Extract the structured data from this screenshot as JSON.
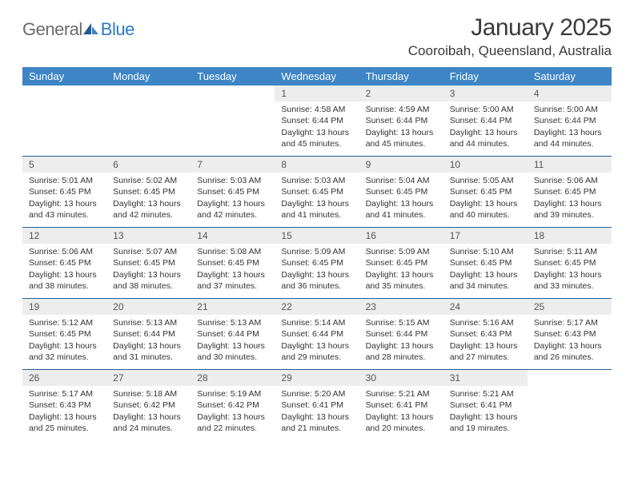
{
  "logo": {
    "general": "General",
    "blue": "Blue"
  },
  "title": {
    "month": "January 2025",
    "location": "Cooroibah, Queensland, Australia"
  },
  "colors": {
    "header_bg": "#3d85c6",
    "header_text": "#ffffff",
    "daynum_bg": "#ededed",
    "week_border": "#2a5b8f",
    "logo_gray": "#6b6b6b",
    "logo_blue": "#2a78c2",
    "body_text": "#333333"
  },
  "weekdays": [
    "Sunday",
    "Monday",
    "Tuesday",
    "Wednesday",
    "Thursday",
    "Friday",
    "Saturday"
  ],
  "labels": {
    "sunrise": "Sunrise:",
    "sunset": "Sunset:",
    "daylight": "Daylight:"
  },
  "weeks": [
    [
      {
        "num": "",
        "sunrise": "",
        "sunset": "",
        "daylight": ""
      },
      {
        "num": "",
        "sunrise": "",
        "sunset": "",
        "daylight": ""
      },
      {
        "num": "",
        "sunrise": "",
        "sunset": "",
        "daylight": ""
      },
      {
        "num": "1",
        "sunrise": "4:58 AM",
        "sunset": "6:44 PM",
        "daylight": "13 hours and 45 minutes."
      },
      {
        "num": "2",
        "sunrise": "4:59 AM",
        "sunset": "6:44 PM",
        "daylight": "13 hours and 45 minutes."
      },
      {
        "num": "3",
        "sunrise": "5:00 AM",
        "sunset": "6:44 PM",
        "daylight": "13 hours and 44 minutes."
      },
      {
        "num": "4",
        "sunrise": "5:00 AM",
        "sunset": "6:44 PM",
        "daylight": "13 hours and 44 minutes."
      }
    ],
    [
      {
        "num": "5",
        "sunrise": "5:01 AM",
        "sunset": "6:45 PM",
        "daylight": "13 hours and 43 minutes."
      },
      {
        "num": "6",
        "sunrise": "5:02 AM",
        "sunset": "6:45 PM",
        "daylight": "13 hours and 42 minutes."
      },
      {
        "num": "7",
        "sunrise": "5:03 AM",
        "sunset": "6:45 PM",
        "daylight": "13 hours and 42 minutes."
      },
      {
        "num": "8",
        "sunrise": "5:03 AM",
        "sunset": "6:45 PM",
        "daylight": "13 hours and 41 minutes."
      },
      {
        "num": "9",
        "sunrise": "5:04 AM",
        "sunset": "6:45 PM",
        "daylight": "13 hours and 41 minutes."
      },
      {
        "num": "10",
        "sunrise": "5:05 AM",
        "sunset": "6:45 PM",
        "daylight": "13 hours and 40 minutes."
      },
      {
        "num": "11",
        "sunrise": "5:06 AM",
        "sunset": "6:45 PM",
        "daylight": "13 hours and 39 minutes."
      }
    ],
    [
      {
        "num": "12",
        "sunrise": "5:06 AM",
        "sunset": "6:45 PM",
        "daylight": "13 hours and 38 minutes."
      },
      {
        "num": "13",
        "sunrise": "5:07 AM",
        "sunset": "6:45 PM",
        "daylight": "13 hours and 38 minutes."
      },
      {
        "num": "14",
        "sunrise": "5:08 AM",
        "sunset": "6:45 PM",
        "daylight": "13 hours and 37 minutes."
      },
      {
        "num": "15",
        "sunrise": "5:09 AM",
        "sunset": "6:45 PM",
        "daylight": "13 hours and 36 minutes."
      },
      {
        "num": "16",
        "sunrise": "5:09 AM",
        "sunset": "6:45 PM",
        "daylight": "13 hours and 35 minutes."
      },
      {
        "num": "17",
        "sunrise": "5:10 AM",
        "sunset": "6:45 PM",
        "daylight": "13 hours and 34 minutes."
      },
      {
        "num": "18",
        "sunrise": "5:11 AM",
        "sunset": "6:45 PM",
        "daylight": "13 hours and 33 minutes."
      }
    ],
    [
      {
        "num": "19",
        "sunrise": "5:12 AM",
        "sunset": "6:45 PM",
        "daylight": "13 hours and 32 minutes."
      },
      {
        "num": "20",
        "sunrise": "5:13 AM",
        "sunset": "6:44 PM",
        "daylight": "13 hours and 31 minutes."
      },
      {
        "num": "21",
        "sunrise": "5:13 AM",
        "sunset": "6:44 PM",
        "daylight": "13 hours and 30 minutes."
      },
      {
        "num": "22",
        "sunrise": "5:14 AM",
        "sunset": "6:44 PM",
        "daylight": "13 hours and 29 minutes."
      },
      {
        "num": "23",
        "sunrise": "5:15 AM",
        "sunset": "6:44 PM",
        "daylight": "13 hours and 28 minutes."
      },
      {
        "num": "24",
        "sunrise": "5:16 AM",
        "sunset": "6:43 PM",
        "daylight": "13 hours and 27 minutes."
      },
      {
        "num": "25",
        "sunrise": "5:17 AM",
        "sunset": "6:43 PM",
        "daylight": "13 hours and 26 minutes."
      }
    ],
    [
      {
        "num": "26",
        "sunrise": "5:17 AM",
        "sunset": "6:43 PM",
        "daylight": "13 hours and 25 minutes."
      },
      {
        "num": "27",
        "sunrise": "5:18 AM",
        "sunset": "6:42 PM",
        "daylight": "13 hours and 24 minutes."
      },
      {
        "num": "28",
        "sunrise": "5:19 AM",
        "sunset": "6:42 PM",
        "daylight": "13 hours and 22 minutes."
      },
      {
        "num": "29",
        "sunrise": "5:20 AM",
        "sunset": "6:41 PM",
        "daylight": "13 hours and 21 minutes."
      },
      {
        "num": "30",
        "sunrise": "5:21 AM",
        "sunset": "6:41 PM",
        "daylight": "13 hours and 20 minutes."
      },
      {
        "num": "31",
        "sunrise": "5:21 AM",
        "sunset": "6:41 PM",
        "daylight": "13 hours and 19 minutes."
      },
      {
        "num": "",
        "sunrise": "",
        "sunset": "",
        "daylight": ""
      }
    ]
  ]
}
